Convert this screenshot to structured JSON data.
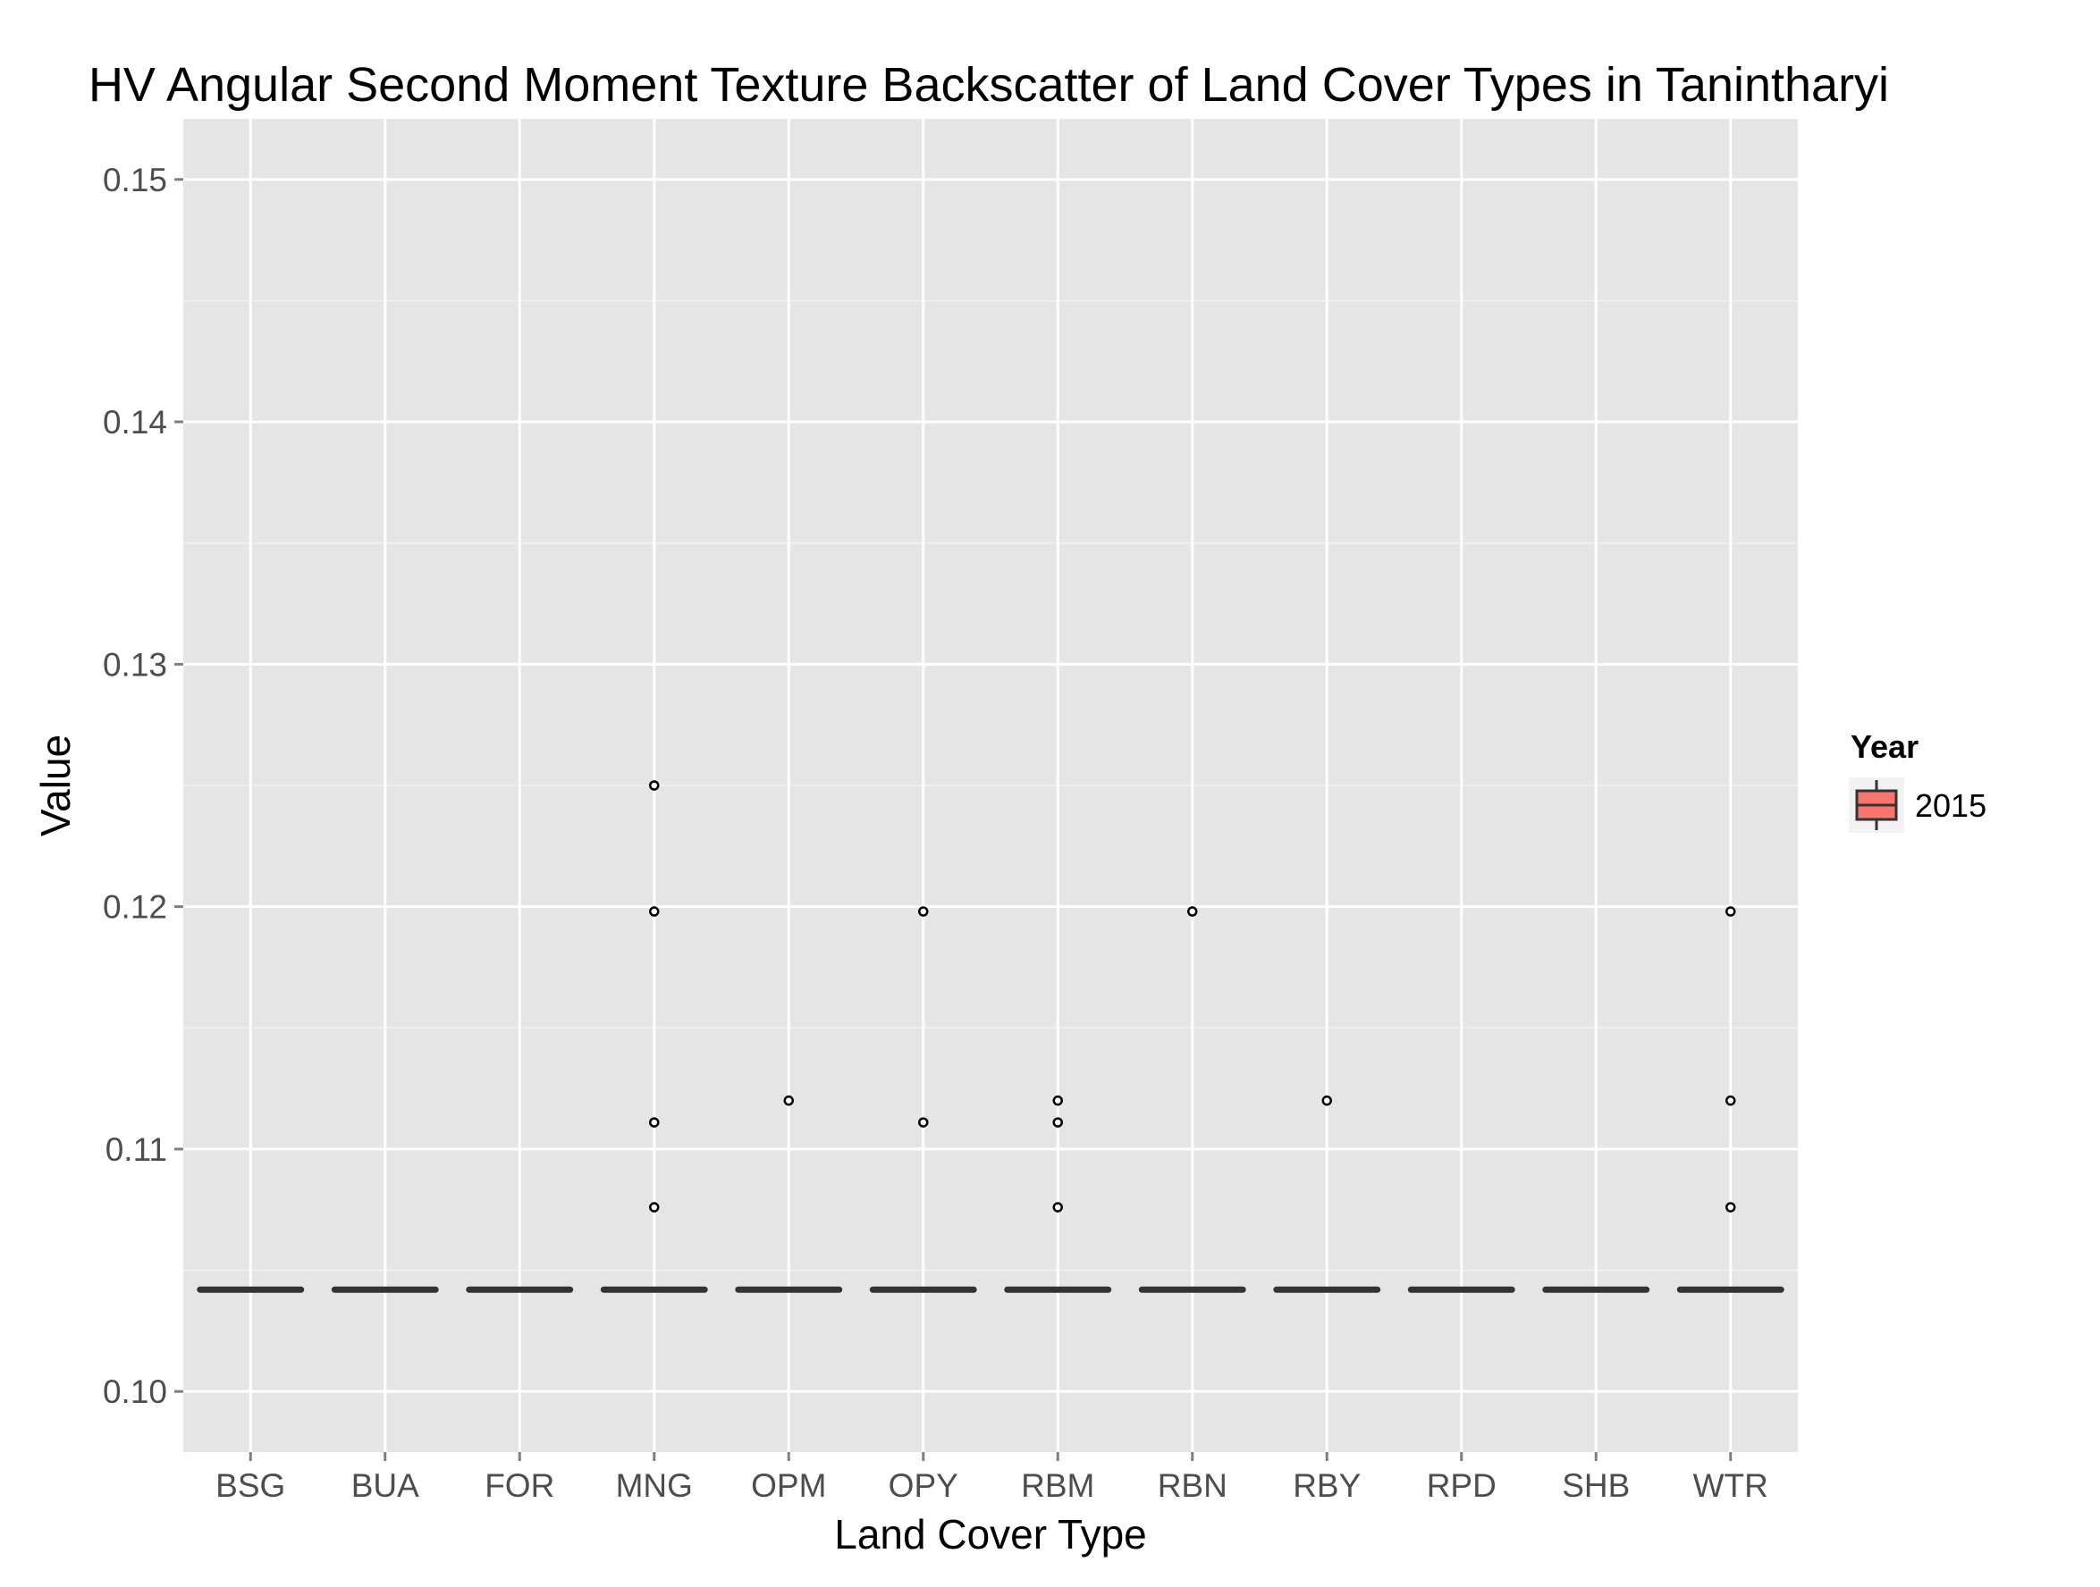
{
  "chart_data": {
    "type": "box",
    "title": "HV Angular Second Moment Texture Backscatter of Land Cover Types in Tanintharyi",
    "xlabel": "Land Cover Type",
    "ylabel": "Value",
    "categories": [
      "BSG",
      "BUA",
      "FOR",
      "MNG",
      "OPM",
      "OPY",
      "RBM",
      "RBN",
      "RBY",
      "RPD",
      "SHB",
      "WTR"
    ],
    "ylim": [
      0.0975,
      0.1525
    ],
    "yticks": [
      0.1,
      0.11,
      0.12,
      0.13,
      0.14,
      0.15
    ],
    "ytick_labels": [
      "0.10",
      "0.11",
      "0.12",
      "0.13",
      "0.14",
      "0.15"
    ],
    "grid": true,
    "legend": {
      "title": "Year",
      "placement": "right",
      "entries": [
        {
          "label": "2015",
          "color": "#F8766D"
        }
      ]
    },
    "series": [
      {
        "name": "2015",
        "color": "#F8766D",
        "boxes": [
          {
            "category": "BSG",
            "q1": 0.1042,
            "median": 0.1042,
            "q3": 0.1042,
            "whisker_low": 0.1042,
            "whisker_high": 0.1042,
            "outliers": []
          },
          {
            "category": "BUA",
            "q1": 0.1042,
            "median": 0.1042,
            "q3": 0.1042,
            "whisker_low": 0.1042,
            "whisker_high": 0.1042,
            "outliers": []
          },
          {
            "category": "FOR",
            "q1": 0.1042,
            "median": 0.1042,
            "q3": 0.1042,
            "whisker_low": 0.1042,
            "whisker_high": 0.1042,
            "outliers": []
          },
          {
            "category": "MNG",
            "q1": 0.1042,
            "median": 0.1042,
            "q3": 0.1042,
            "whisker_low": 0.1042,
            "whisker_high": 0.1042,
            "outliers": [
              0.125,
              0.1198,
              0.1111,
              0.1076
            ]
          },
          {
            "category": "OPM",
            "q1": 0.1042,
            "median": 0.1042,
            "q3": 0.1042,
            "whisker_low": 0.1042,
            "whisker_high": 0.1042,
            "outliers": [
              0.112
            ]
          },
          {
            "category": "OPY",
            "q1": 0.1042,
            "median": 0.1042,
            "q3": 0.1042,
            "whisker_low": 0.1042,
            "whisker_high": 0.1042,
            "outliers": [
              0.1198,
              0.1111
            ]
          },
          {
            "category": "RBM",
            "q1": 0.1042,
            "median": 0.1042,
            "q3": 0.1042,
            "whisker_low": 0.1042,
            "whisker_high": 0.1042,
            "outliers": [
              0.112,
              0.1111,
              0.1076
            ]
          },
          {
            "category": "RBN",
            "q1": 0.1042,
            "median": 0.1042,
            "q3": 0.1042,
            "whisker_low": 0.1042,
            "whisker_high": 0.1042,
            "outliers": [
              0.1198
            ]
          },
          {
            "category": "RBY",
            "q1": 0.1042,
            "median": 0.1042,
            "q3": 0.1042,
            "whisker_low": 0.1042,
            "whisker_high": 0.1042,
            "outliers": [
              0.112
            ]
          },
          {
            "category": "RPD",
            "q1": 0.1042,
            "median": 0.1042,
            "q3": 0.1042,
            "whisker_low": 0.1042,
            "whisker_high": 0.1042,
            "outliers": []
          },
          {
            "category": "SHB",
            "q1": 0.1042,
            "median": 0.1042,
            "q3": 0.1042,
            "whisker_low": 0.1042,
            "whisker_high": 0.1042,
            "outliers": []
          },
          {
            "category": "WTR",
            "q1": 0.1042,
            "median": 0.1042,
            "q3": 0.1042,
            "whisker_low": 0.1042,
            "whisker_high": 0.1042,
            "outliers": [
              0.1198,
              0.112,
              0.1076
            ]
          }
        ]
      }
    ]
  }
}
